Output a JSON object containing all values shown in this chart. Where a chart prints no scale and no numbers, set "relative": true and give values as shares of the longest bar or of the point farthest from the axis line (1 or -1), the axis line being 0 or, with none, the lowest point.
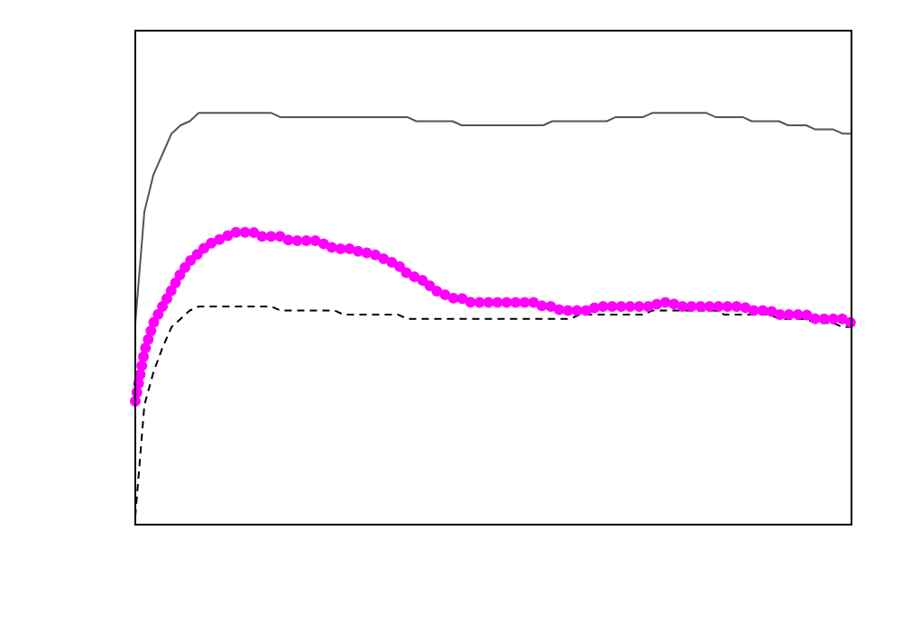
{
  "chart_data": {
    "type": "line",
    "relative": true,
    "grid": false,
    "legend": false,
    "tick_labels": false,
    "categories": [
      null,
      null,
      null,
      null,
      null,
      null,
      null,
      null,
      null,
      null,
      null,
      null,
      null,
      null,
      null,
      null,
      null,
      null,
      null,
      null,
      null,
      null,
      null,
      null,
      null,
      null,
      null,
      null,
      null,
      null,
      null,
      null,
      null,
      null,
      null,
      null,
      null,
      null,
      null,
      null,
      null,
      null,
      null,
      null,
      null,
      null,
      null,
      null,
      null,
      null,
      null,
      null,
      null,
      null,
      null,
      null,
      null,
      null,
      null,
      null,
      null,
      null,
      null,
      null,
      null,
      null,
      null,
      null,
      null,
      null,
      null,
      null,
      null,
      null,
      null,
      null,
      null,
      null,
      null,
      null
    ],
    "series": [
      {
        "color": "#555555",
        "line_style": "solid",
        "values": [
          0.49,
          0.76,
          0.85,
          0.9,
          0.95,
          0.97,
          0.98,
          1,
          1,
          1,
          1,
          1,
          1,
          1,
          1,
          1,
          0.99,
          0.99,
          0.99,
          0.99,
          0.99,
          0.99,
          0.99,
          0.99,
          0.99,
          0.99,
          0.99,
          0.99,
          0.99,
          0.99,
          0.99,
          0.98,
          0.98,
          0.98,
          0.98,
          0.98,
          0.97,
          0.97,
          0.97,
          0.97,
          0.97,
          0.97,
          0.97,
          0.97,
          0.97,
          0.97,
          0.98,
          0.98,
          0.98,
          0.98,
          0.98,
          0.98,
          0.98,
          0.99,
          0.99,
          0.99,
          0.99,
          1,
          1,
          1,
          1,
          1,
          1,
          1,
          0.99,
          0.99,
          0.99,
          0.99,
          0.98,
          0.98,
          0.98,
          0.98,
          0.97,
          0.97,
          0.97,
          0.96,
          0.96,
          0.96,
          0.95,
          0.95
        ]
      },
      {
        "color": "#ff00ff",
        "line_style": "dotted",
        "values": [
          0.3,
          0.42,
          0.49,
          0.53,
          0.57,
          0.61,
          0.64,
          0.66,
          0.68,
          0.69,
          0.7,
          0.71,
          0.71,
          0.71,
          0.7,
          0.7,
          0.7,
          0.69,
          0.69,
          0.69,
          0.69,
          0.68,
          0.67,
          0.67,
          0.67,
          0.66,
          0.66,
          0.65,
          0.64,
          0.63,
          0.61,
          0.6,
          0.59,
          0.57,
          0.56,
          0.55,
          0.55,
          0.54,
          0.54,
          0.54,
          0.54,
          0.54,
          0.54,
          0.54,
          0.54,
          0.53,
          0.53,
          0.52,
          0.52,
          0.52,
          0.52,
          0.53,
          0.53,
          0.53,
          0.53,
          0.53,
          0.53,
          0.53,
          0.54,
          0.54,
          0.53,
          0.53,
          0.53,
          0.53,
          0.53,
          0.53,
          0.53,
          0.53,
          0.52,
          0.52,
          0.52,
          0.51,
          0.51,
          0.51,
          0.51,
          0.5,
          0.5,
          0.5,
          0.5,
          0.49
        ]
      },
      {
        "color": "#000000",
        "line_style": "dashed",
        "values": [
          0.02,
          0.29,
          0.37,
          0.43,
          0.48,
          0.5,
          0.52,
          0.53,
          0.53,
          0.53,
          0.53,
          0.53,
          0.53,
          0.53,
          0.53,
          0.53,
          0.52,
          0.52,
          0.52,
          0.52,
          0.52,
          0.52,
          0.52,
          0.51,
          0.51,
          0.51,
          0.51,
          0.51,
          0.51,
          0.51,
          0.5,
          0.5,
          0.5,
          0.5,
          0.5,
          0.5,
          0.5,
          0.5,
          0.5,
          0.5,
          0.5,
          0.5,
          0.5,
          0.5,
          0.5,
          0.5,
          0.5,
          0.5,
          0.5,
          0.51,
          0.51,
          0.51,
          0.51,
          0.51,
          0.51,
          0.51,
          0.51,
          0.52,
          0.52,
          0.52,
          0.52,
          0.52,
          0.52,
          0.52,
          0.52,
          0.51,
          0.51,
          0.51,
          0.51,
          0.51,
          0.51,
          0.5,
          0.5,
          0.5,
          0.5,
          0.49,
          0.49,
          0.49,
          0.48,
          0.48
        ]
      }
    ]
  }
}
